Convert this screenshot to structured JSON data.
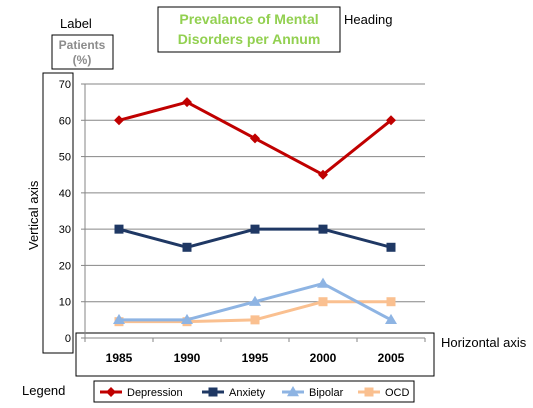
{
  "annotations": {
    "label": "Label",
    "heading": "Heading",
    "vertical_axis": "Vertical axis",
    "horizontal_axis": "Horizontal axis",
    "legend": "Legend"
  },
  "chart_data": {
    "type": "line",
    "title_lines": [
      "Prevalance of Mental",
      "Disorders per Annum"
    ],
    "ylabel_lines": [
      "Patients",
      "(%)"
    ],
    "xlabel": "",
    "x": [
      "1985",
      "1990",
      "1995",
      "2000",
      "2005"
    ],
    "ylim": [
      0,
      70
    ],
    "yticks": [
      0,
      10,
      20,
      30,
      40,
      50,
      60,
      70
    ],
    "grid": true,
    "legend_position": "bottom",
    "series": [
      {
        "name": "Depression",
        "values": [
          60,
          65,
          55,
          45,
          60
        ],
        "color": "#c00000",
        "marker": "diamond"
      },
      {
        "name": "Anxiety",
        "values": [
          30,
          25,
          30,
          30,
          25
        ],
        "color": "#1f3864",
        "marker": "square"
      },
      {
        "name": "Bipolar",
        "values": [
          5,
          5,
          10,
          15,
          5
        ],
        "color": "#8eb4e3",
        "marker": "triangle"
      },
      {
        "name": "OCD",
        "values": [
          4.5,
          4.5,
          5,
          10,
          10
        ],
        "color": "#fac090",
        "marker": "square"
      }
    ]
  }
}
